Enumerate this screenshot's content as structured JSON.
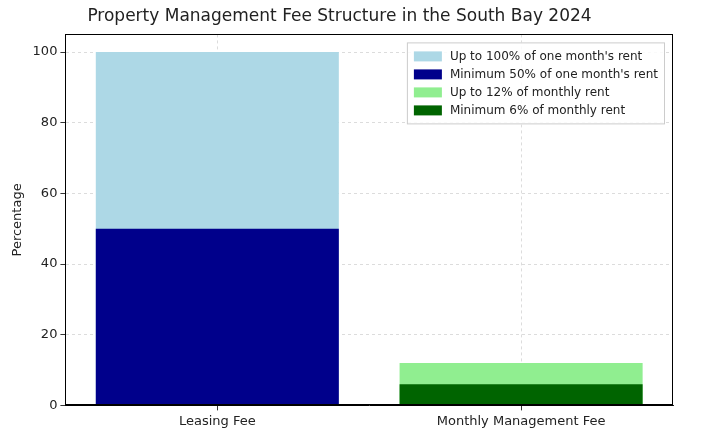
{
  "chart_data": {
    "type": "bar",
    "title": "Property Management Fee Structure in the South Bay 2024",
    "categories": [
      "Leasing Fee",
      "Monthly Management Fee"
    ],
    "y_label": "Percentage",
    "series": [
      {
        "name": "Up to 100% of one month's rent",
        "color": "#add8e6",
        "values": [
          100,
          null
        ]
      },
      {
        "name": "Minimum 50% of one month's rent",
        "color": "#00008b",
        "values": [
          50,
          null
        ]
      },
      {
        "name": "Up to 12% of monthly rent",
        "color": "#90ee90",
        "values": [
          null,
          12
        ]
      },
      {
        "name": "Minimum 6% of monthly rent",
        "color": "#006400",
        "values": [
          null,
          6
        ]
      }
    ],
    "ylim": [
      0,
      105
    ],
    "yticks": [
      0,
      20,
      40,
      60,
      80,
      100
    ],
    "grid": true,
    "legend": "upper right",
    "stacked": false
  }
}
